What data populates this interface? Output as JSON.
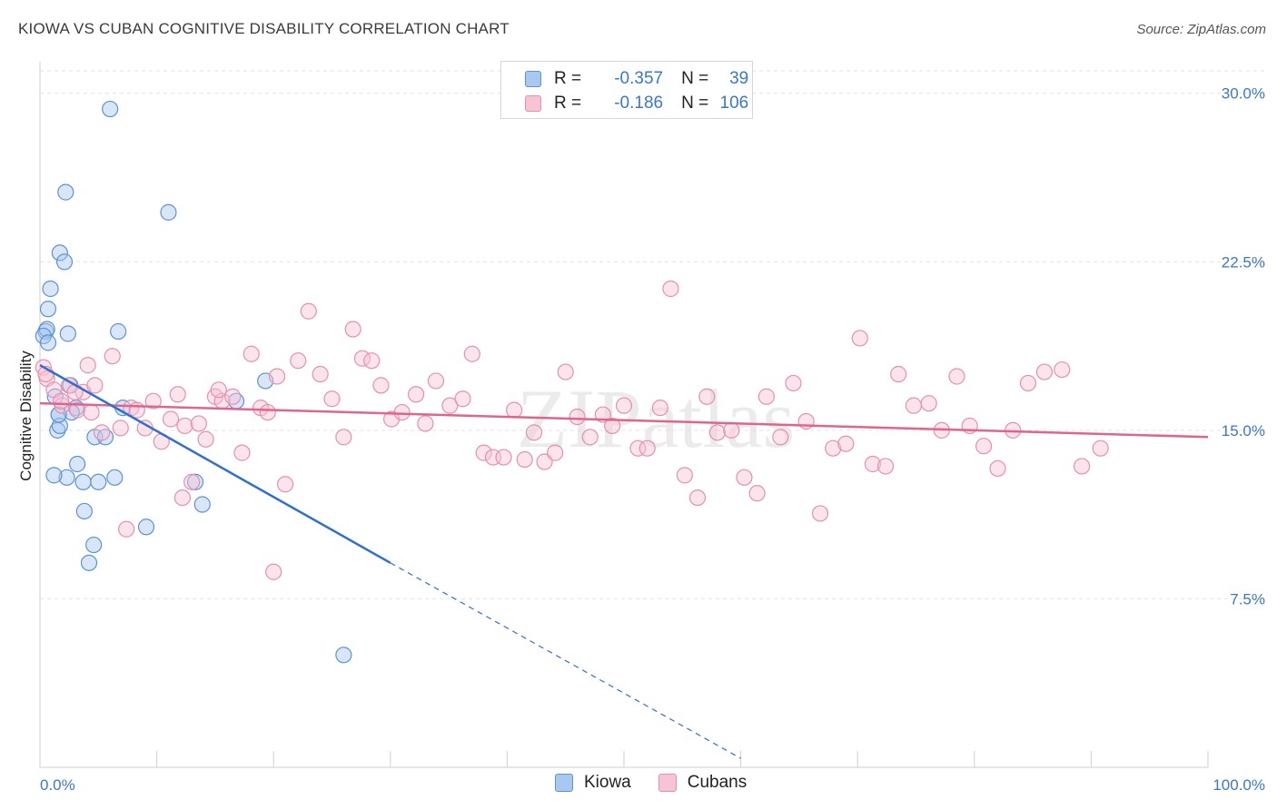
{
  "title": "KIOWA VS CUBAN COGNITIVE DISABILITY CORRELATION CHART",
  "source": "Source: ZipAtlas.com",
  "watermark": "ZIPatlas",
  "colors": {
    "kiowa_fill": "#a8c8f0",
    "kiowa_stroke": "#5b93d8",
    "kiowa_line": "#2f6fcf",
    "cubans_fill": "#f6c4d4",
    "cubans_stroke": "#e690ad",
    "cubans_line": "#e0648f",
    "tick_text": "#3b78c8"
  },
  "legend": {
    "kiowa": {
      "r_label": "R =",
      "r_value": "-0.357",
      "n_label": "N =",
      "n_value": "39"
    },
    "cubans": {
      "r_label": "R =",
      "r_value": "-0.186",
      "n_label": "N =",
      "n_value": "106"
    }
  },
  "bottom_legend": {
    "kiowa": "Kiowa",
    "cubans": "Cubans"
  },
  "chart_data": {
    "type": "scatter",
    "title": "KIOWA VS CUBAN COGNITIVE DISABILITY CORRELATION CHART",
    "xlabel": "",
    "ylabel": "Cognitive Disability",
    "xlim": [
      0,
      100
    ],
    "ylim": [
      0,
      31
    ],
    "x_tick_labels": [
      "0.0%",
      "100.0%"
    ],
    "y_ticks": [
      7.5,
      15.0,
      22.5,
      30.0
    ],
    "y_tick_labels": [
      "7.5%",
      "15.0%",
      "22.5%",
      "30.0%"
    ],
    "series": [
      {
        "name": "Kiowa",
        "x": [
          6.0,
          2.2,
          11.0,
          1.7,
          2.1,
          0.9,
          0.7,
          2.4,
          6.7,
          0.5,
          0.6,
          0.3,
          0.7,
          19.3,
          16.8,
          1.3,
          7.1,
          3.1,
          4.7,
          1.5,
          1.6,
          1.7,
          5.6,
          2.7,
          1.6,
          3.2,
          3.7,
          2.3,
          6.4,
          5.0,
          13.3,
          1.2,
          13.9,
          3.8,
          9.1,
          4.6,
          4.2,
          26.0,
          2.6
        ],
        "y": [
          29.3,
          25.6,
          24.7,
          22.9,
          22.5,
          21.3,
          20.4,
          19.3,
          19.4,
          19.4,
          19.5,
          19.2,
          18.9,
          17.2,
          16.3,
          16.5,
          16.0,
          16.0,
          14.7,
          15.0,
          15.7,
          15.2,
          14.7,
          15.8,
          15.7,
          13.5,
          12.7,
          12.9,
          12.9,
          12.7,
          12.7,
          13.0,
          11.7,
          11.4,
          10.7,
          9.9,
          9.1,
          5.0,
          17.0
        ]
      },
      {
        "name": "Cubans",
        "x": [
          0.3,
          0.6,
          1.2,
          1.9,
          2.5,
          3.2,
          3.7,
          4.1,
          4.7,
          5.3,
          6.2,
          6.9,
          7.8,
          8.3,
          9.0,
          9.7,
          10.4,
          11.2,
          11.8,
          12.4,
          13.0,
          13.6,
          14.2,
          15.0,
          15.6,
          16.5,
          17.3,
          18.1,
          18.9,
          19.5,
          20.3,
          21.0,
          22.1,
          23.0,
          24.0,
          25.0,
          26.0,
          26.8,
          27.6,
          28.4,
          29.2,
          30.1,
          31.0,
          32.2,
          33.0,
          33.9,
          35.1,
          36.2,
          37.0,
          38.0,
          38.8,
          39.7,
          40.6,
          41.5,
          42.3,
          43.2,
          44.1,
          45.0,
          46.0,
          47.1,
          48.2,
          49.0,
          50.0,
          51.2,
          52.0,
          53.1,
          54.0,
          55.2,
          56.3,
          57.1,
          58.0,
          59.2,
          60.3,
          61.4,
          62.2,
          63.4,
          64.5,
          65.6,
          66.8,
          67.9,
          69.0,
          70.2,
          71.3,
          72.4,
          73.5,
          74.8,
          76.1,
          77.2,
          78.5,
          79.6,
          80.8,
          82.0,
          83.3,
          84.6,
          86.0,
          87.5,
          89.2,
          90.8,
          0.5,
          1.8,
          3.0,
          4.4,
          7.4,
          12.2,
          20.0,
          15.3
        ],
        "y": [
          17.8,
          17.3,
          16.8,
          16.1,
          17.0,
          15.9,
          16.7,
          17.9,
          17.0,
          14.9,
          18.3,
          15.1,
          16.0,
          15.9,
          15.1,
          16.3,
          14.5,
          15.5,
          16.6,
          15.2,
          12.7,
          15.3,
          14.6,
          16.5,
          16.3,
          16.5,
          14.0,
          18.4,
          16.0,
          15.8,
          17.4,
          12.6,
          18.1,
          20.3,
          17.5,
          16.4,
          14.7,
          19.5,
          18.2,
          18.1,
          17.0,
          15.5,
          15.8,
          16.6,
          15.3,
          17.2,
          16.1,
          16.4,
          18.4,
          14.0,
          13.8,
          13.8,
          15.9,
          13.7,
          14.9,
          13.6,
          14.0,
          17.6,
          15.6,
          14.7,
          15.7,
          15.2,
          16.1,
          14.2,
          14.2,
          16.0,
          21.3,
          13.0,
          12.0,
          16.5,
          14.9,
          15.0,
          12.9,
          12.2,
          16.5,
          14.7,
          17.1,
          15.4,
          11.3,
          14.2,
          14.4,
          19.1,
          13.5,
          13.4,
          17.5,
          16.1,
          16.2,
          15.0,
          17.4,
          15.2,
          14.3,
          13.3,
          15.0,
          17.1,
          17.6,
          17.7,
          13.4,
          14.2,
          17.5,
          16.3,
          16.7,
          15.8,
          10.6,
          12.0,
          8.7,
          16.8
        ]
      }
    ],
    "trendlines": [
      {
        "name": "Kiowa",
        "x": [
          0,
          30
        ],
        "y": [
          17.9,
          9.1
        ],
        "dashed_extension_to": {
          "x": 60,
          "y": 0.4
        }
      },
      {
        "name": "Cubans",
        "x": [
          0,
          100
        ],
        "y": [
          16.2,
          14.7
        ]
      }
    ],
    "legend_position": "top-center"
  }
}
